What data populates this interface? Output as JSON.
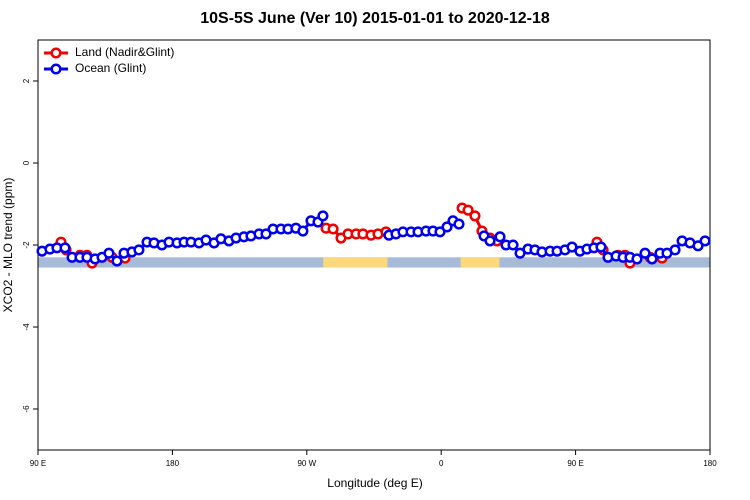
{
  "chart_data": {
    "type": "line",
    "title": "10S-5S June (Ver 10)   2015-01-01 to 2020-12-18",
    "x_label": "Longitude (deg E)",
    "y_label": "XCO2 - MLO trend (ppm)",
    "xlim": [
      90,
      540
    ],
    "ylim": [
      -7,
      3
    ],
    "xticks": [
      {
        "value": 90,
        "label": "90 E"
      },
      180,
      {
        "value": 270,
        "label": "90 W"
      },
      {
        "value": 360,
        "label": "0"
      },
      {
        "value": 450,
        "label": "90 E"
      },
      {
        "value": 540,
        "label": "180"
      }
    ],
    "yticks": [
      -6,
      -4,
      -2,
      0,
      2
    ],
    "legend": "top-left",
    "mask": {
      "ylim": [
        -2.55,
        -2.3
      ],
      "ocean_color": "#a7bbd9",
      "land_color": "#fbd97a",
      "land": [
        [
          281,
          324
        ],
        [
          373,
          399
        ]
      ]
    },
    "series": [
      {
        "name": "Land (Nadir&Glint)",
        "color": "#ee0000",
        "x": [
          105.4,
          108.8,
          null,
          118.1,
          122.8,
          126.2,
          null,
          139.6,
          148.3,
          null,
          282.9,
          287.6,
          292.9,
          297.6,
          303.0,
          307.6,
          313.0,
          317.7,
          323.0,
          null,
          374.0,
          378.0,
          382.6,
          387.3,
          392.7,
          397.4,
          null,
          464.3,
          468.4,
          null,
          478.4,
          483.1,
          486.4,
          null,
          499.8,
          507.9
        ],
        "values": [
          -1.93,
          -2.12,
          null,
          -2.25,
          -2.25,
          -2.44,
          null,
          -2.3,
          -2.32,
          null,
          -1.59,
          -1.61,
          -1.83,
          -1.73,
          -1.73,
          -1.73,
          -1.76,
          -1.73,
          -1.68,
          null,
          -1.1,
          -1.15,
          -1.29,
          -1.66,
          -1.83,
          -1.9,
          null,
          -1.93,
          -2.12,
          null,
          -2.25,
          -2.25,
          -2.44,
          null,
          -2.3,
          -2.32
        ]
      },
      {
        "name": "Ocean (Glint)",
        "color": "#0000ee",
        "x": [
          92.7,
          98.0,
          102.7,
          108.1,
          112.8,
          118.1,
          122.8,
          128.2,
          132.9,
          137.5,
          142.9,
          147.6,
          152.9,
          157.6,
          163.0,
          167.7,
          173.0,
          177.7,
          183.1,
          187.8,
          192.5,
          197.8,
          202.5,
          207.9,
          212.5,
          217.9,
          222.6,
          227.9,
          232.6,
          238.0,
          242.7,
          247.4,
          252.7,
          257.4,
          262.7,
          267.4,
          272.8,
          277.5,
          280.8,
          null,
          325.0,
          329.7,
          334.4,
          339.8,
          344.5,
          349.8,
          354.5,
          359.2,
          363.9,
          367.9,
          371.9,
          null,
          388.7,
          392.7,
          399.4,
          403.4,
          408.1,
          412.8,
          418.1,
          422.8,
          427.5,
          432.9,
          437.6,
          442.9,
          447.6,
          452.9,
          457.6,
          462.3,
          467.0,
          471.7,
          477.1,
          481.8,
          486.4,
          491.1,
          496.5,
          501.2,
          506.5,
          511.2,
          516.6,
          521.3,
          526.6,
          532.0,
          536.7
        ],
        "values": [
          -2.15,
          -2.1,
          -2.07,
          -2.07,
          -2.3,
          -2.3,
          -2.3,
          -2.34,
          -2.3,
          -2.2,
          -2.39,
          -2.2,
          -2.17,
          -2.12,
          -1.93,
          -1.95,
          -2.0,
          -1.93,
          -1.95,
          -1.93,
          -1.93,
          -1.95,
          -1.88,
          -1.95,
          -1.85,
          -1.9,
          -1.83,
          -1.8,
          -1.78,
          -1.73,
          -1.73,
          -1.61,
          -1.61,
          -1.61,
          -1.59,
          -1.66,
          -1.41,
          -1.44,
          -1.29,
          null,
          -1.76,
          -1.73,
          -1.68,
          -1.68,
          -1.68,
          -1.66,
          -1.66,
          -1.68,
          -1.56,
          -1.41,
          -1.49,
          null,
          -1.78,
          -1.9,
          -1.8,
          -2.0,
          -2.0,
          -2.2,
          -2.1,
          -2.12,
          -2.17,
          -2.15,
          -2.15,
          -2.12,
          -2.05,
          -2.15,
          -2.1,
          -2.07,
          -2.05,
          -2.3,
          -2.27,
          -2.3,
          -2.3,
          -2.34,
          -2.2,
          -2.34,
          -2.2,
          -2.2,
          -2.12,
          -1.9,
          -1.95,
          -2.02,
          -1.9
        ]
      }
    ]
  }
}
